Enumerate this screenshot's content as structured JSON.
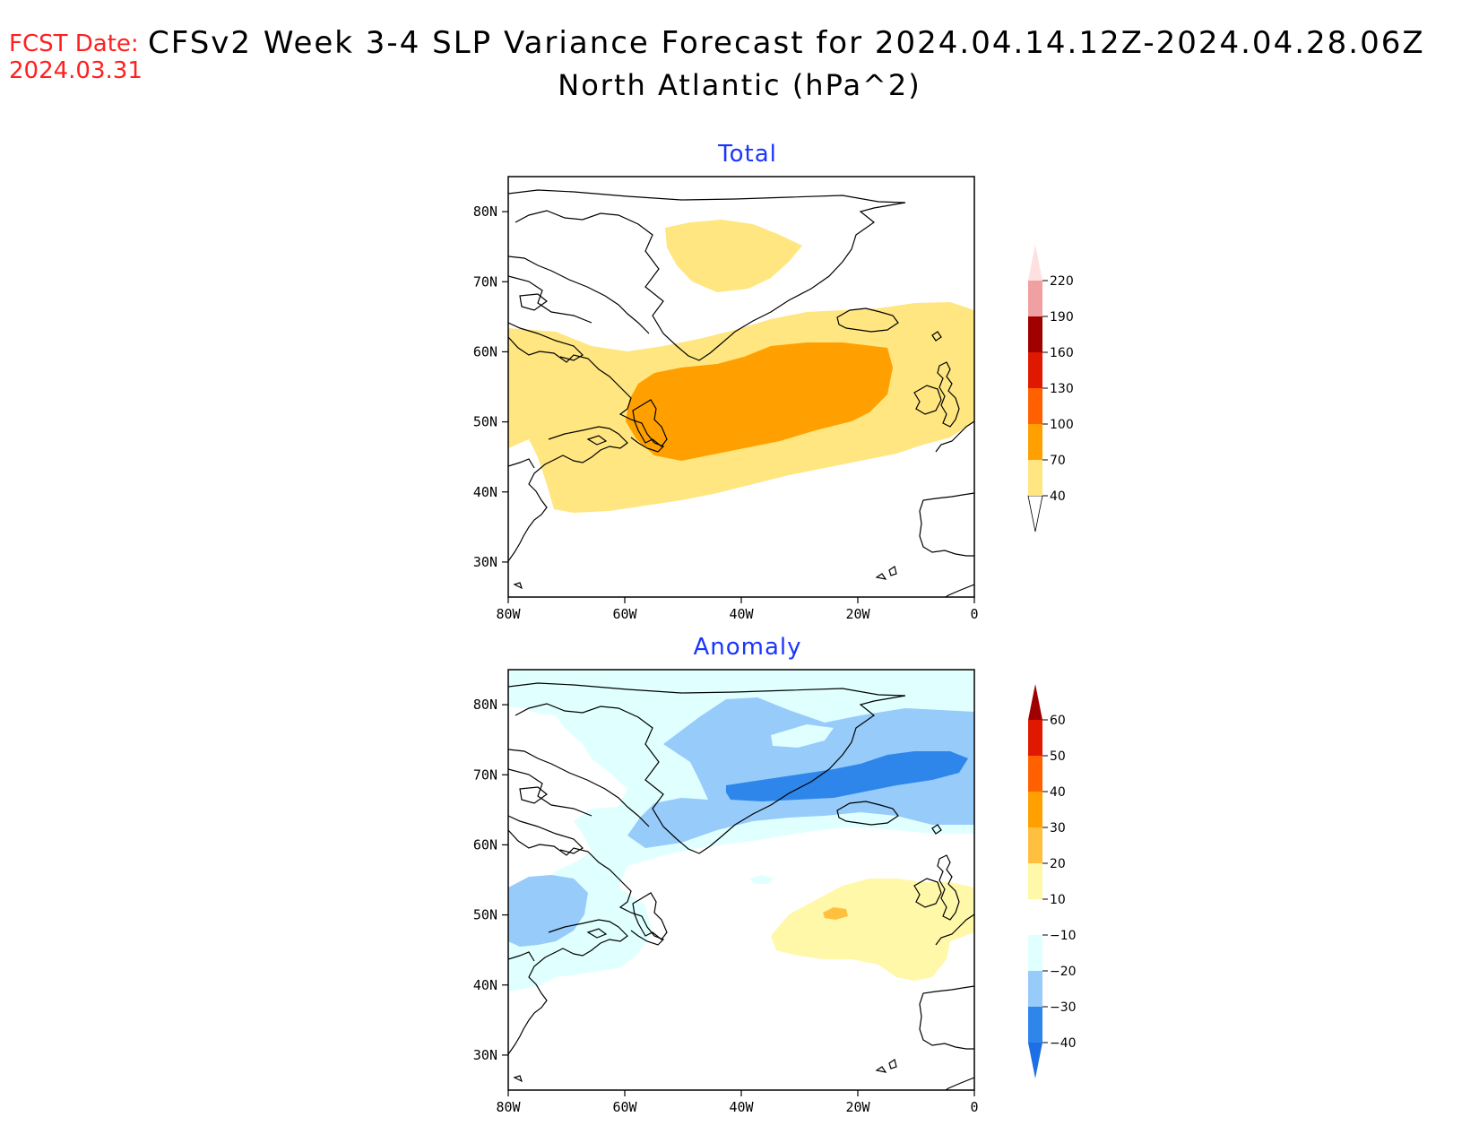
{
  "header": {
    "fcst_label": "FCST Date:",
    "fcst_date": "2024.03.31",
    "title_line1": "CFSv2 Week 3-4 SLP Variance Forecast for 2024.04.14.12Z-2024.04.28.06Z",
    "title_line2": "North Atlantic (hPa^2)"
  },
  "axes": {
    "lat_ticks": [
      "80N",
      "70N",
      "60N",
      "50N",
      "40N",
      "30N"
    ],
    "lon_ticks": [
      "80W",
      "60W",
      "40W",
      "20W",
      "0"
    ]
  },
  "panels": [
    {
      "title": "Total",
      "colorbar": {
        "labels": [
          "40",
          "70",
          "100",
          "130",
          "160",
          "190",
          "220"
        ],
        "colors": [
          "#ffe680",
          "#ffa000",
          "#ff6000",
          "#e01800",
          "#a00000",
          "#f0a0a0",
          "#ffe0e0"
        ],
        "low_color": "#ffffff"
      }
    },
    {
      "title": "Anomaly",
      "colorbar": {
        "labels": [
          "−40",
          "−30",
          "−20",
          "−10",
          "10",
          "20",
          "30",
          "40",
          "50",
          "60"
        ],
        "colors": [
          "#1e6ee6",
          "#2e86ea",
          "#96cbfa",
          "#e0ffff",
          "#ffffff",
          "#fff8a8",
          "#ffc040",
          "#ffa000",
          "#ff6000",
          "#e01800",
          "#a00000"
        ]
      }
    }
  ],
  "chart_data": [
    {
      "type": "heatmap",
      "title": "Total",
      "region": "North Atlantic",
      "units": "hPa^2",
      "lat_range": [
        25,
        85
      ],
      "lon_range": [
        -80,
        0
      ],
      "levels": [
        40,
        70,
        100,
        130,
        160,
        190,
        220
      ],
      "regions": [
        {
          "level": "40-70",
          "description": "broad band from Labrador Sea and Newfoundland across North Atlantic to Iceland and British Isles, ~37N-67N"
        },
        {
          "level": "40-70",
          "description": "isolated patch over interior Greenland, ~72N-80N, 28W-53W"
        },
        {
          "level": "70-100",
          "description": "core from Newfoundland east to ~15W, ~44N-60N"
        }
      ]
    },
    {
      "type": "heatmap",
      "title": "Anomaly",
      "region": "North Atlantic",
      "units": "hPa^2",
      "lat_range": [
        25,
        85
      ],
      "lon_range": [
        -80,
        0
      ],
      "levels": [
        -40,
        -30,
        -20,
        -10,
        10,
        20,
        30,
        40,
        50,
        60
      ],
      "regions": [
        {
          "level": "-40 to -30",
          "description": "band from Denmark Strait to Norwegian Sea, ~67N-73N, 37W-0"
        },
        {
          "level": "-30 to -20",
          "description": "Greenland Sea / Iceland region and over Labrador/Hudson area ~45N-55N, 70W-80W"
        },
        {
          "level": "-20 to -10",
          "description": "broad envelope over Greenland, Baffin, Labrador Sea and Canadian Maritimes"
        },
        {
          "level": "10 to 20",
          "description": "east Atlantic west of British Isles, ~44N-56N, 5W-35W"
        },
        {
          "level": "20 to 30",
          "description": "small spot near 51N, 24W"
        }
      ]
    }
  ]
}
